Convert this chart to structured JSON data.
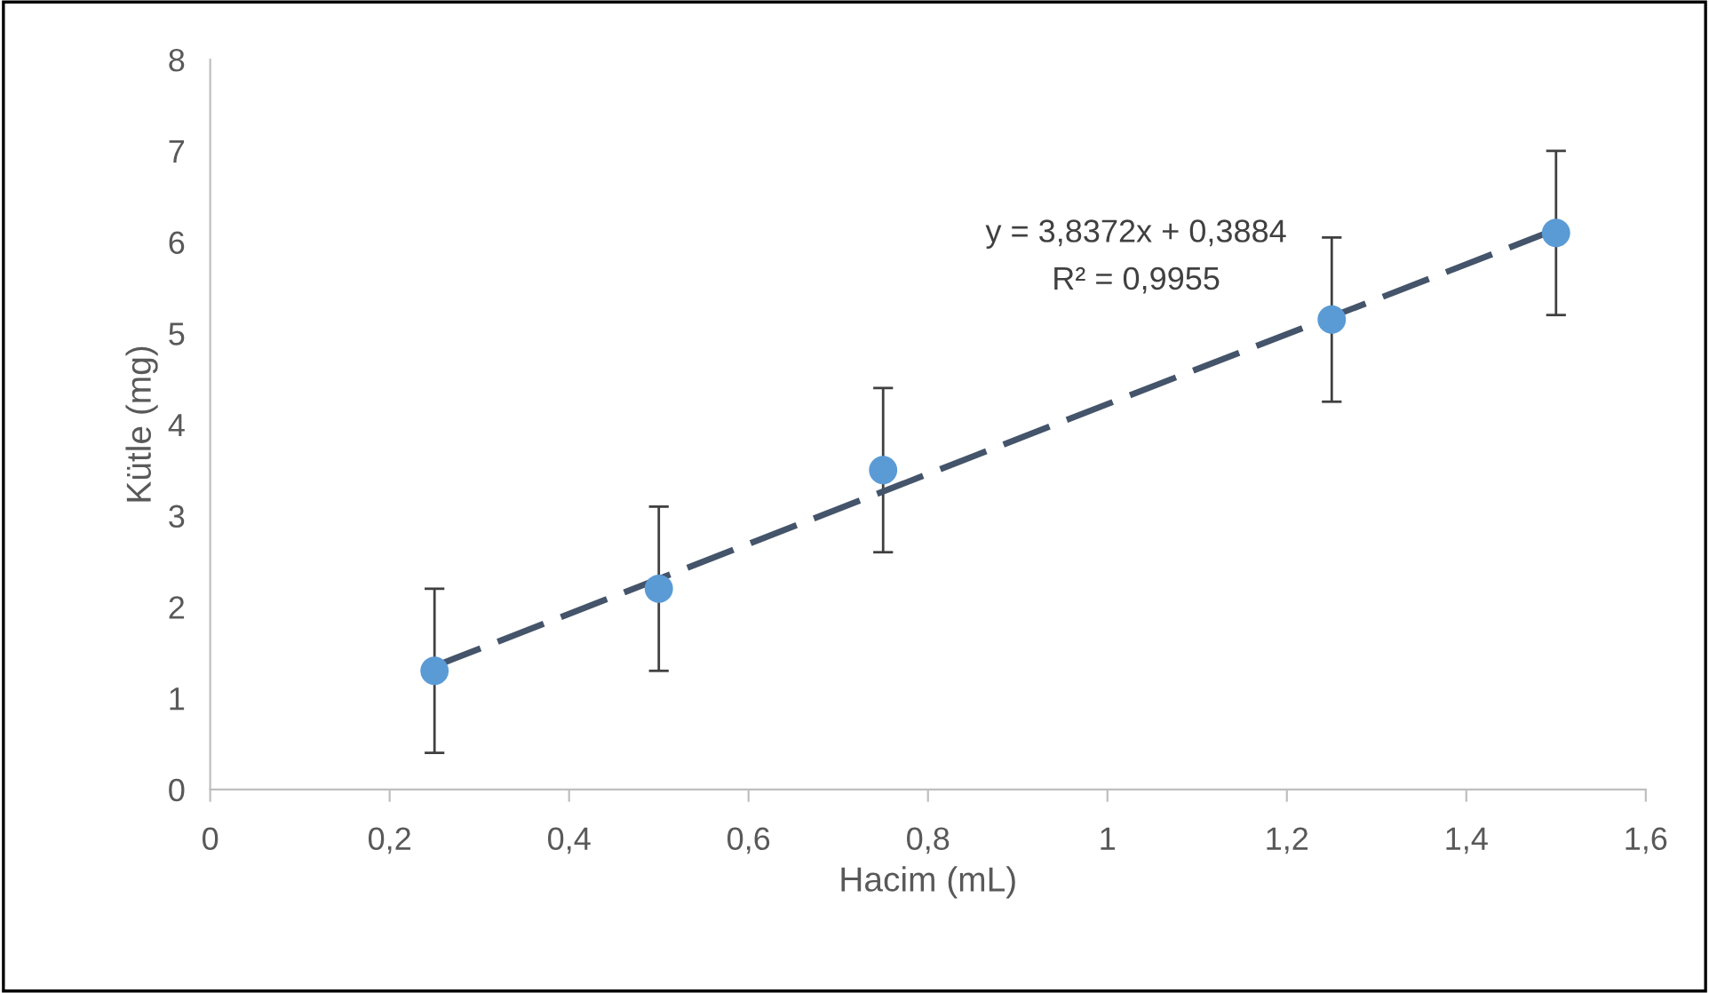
{
  "chart_data": {
    "type": "scatter",
    "xlabel": "Hacim (mL)",
    "ylabel": "Kütle (mg)",
    "series": [
      {
        "color": "#5b9bd5",
        "x": [
          0.25,
          0.5,
          0.75,
          1.25,
          1.5
        ],
        "values": [
          1.3,
          2.2,
          3.5,
          5.15,
          6.1
        ],
        "errors": [
          0.9,
          0.9,
          0.9,
          0.9,
          0.9
        ],
        "marker": "circle"
      },
      {
        "type": "line",
        "color": "#44546a",
        "x": [
          0.25,
          1.5
        ],
        "values": [
          1.35,
          6.14
        ],
        "line_style": "dashed"
      }
    ],
    "annotations": [
      "y = 3,8372x + 0,3884",
      "R² = 0,9955"
    ],
    "xlim": [
      0,
      1.6
    ],
    "xticks": [
      0,
      {
        "value": 0.2,
        "label": "0,2"
      },
      {
        "value": 0.4,
        "label": "0,4"
      },
      {
        "value": 0.6,
        "label": "0,6"
      },
      {
        "value": 0.8,
        "label": "0,8"
      },
      1,
      {
        "value": 1.2,
        "label": "1,2"
      },
      {
        "value": 1.4,
        "label": "1,4"
      },
      {
        "value": 1.6,
        "label": "1,6"
      }
    ],
    "ylim": [
      0,
      8
    ],
    "yticks": [
      0,
      1,
      2,
      3,
      4,
      5,
      6,
      7,
      8
    ],
    "grid": false,
    "legend": false
  }
}
